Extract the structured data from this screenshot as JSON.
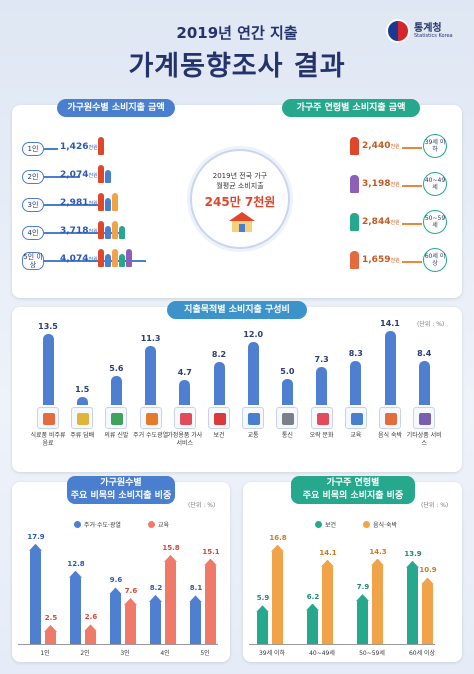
{
  "header": {
    "subtitle": "2019년 연간 지출",
    "title": "가계동향조사 결과",
    "logo_name": "통계청",
    "logo_en": "Statistics Korea"
  },
  "colors": {
    "navy": "#25336b",
    "blue": "#4f7fd1",
    "green": "#26a88d",
    "orange": "#f1a34a",
    "red": "#e0462a",
    "coral": "#ef7a6a"
  },
  "section1": {
    "left_title": "가구원수별 소비지출 금액",
    "right_title": "가구주 연령별 소비지출 금액",
    "center_line1": "2019년 전국 가구",
    "center_line2": "월평균 소비지출",
    "center_value": "245만 7천원",
    "unit_suffix": "천원",
    "household": [
      {
        "label": "1인",
        "value": "1,426"
      },
      {
        "label": "2인",
        "value": "2,074"
      },
      {
        "label": "3인",
        "value": "2,981"
      },
      {
        "label": "4인",
        "value": "3,718"
      },
      {
        "label": "5인 이상",
        "value": "4,074"
      }
    ],
    "age": [
      {
        "label": "39세 이하",
        "value": "2,440"
      },
      {
        "label": "40~49세",
        "value": "3,198"
      },
      {
        "label": "50~59세",
        "value": "2,844"
      },
      {
        "label": "60세 이상",
        "value": "1,659"
      }
    ]
  },
  "chart_data": [
    {
      "type": "bar",
      "title": "지출목적별 소비지출 구성비",
      "unit": "(단위 : %)",
      "categories": [
        "식료품 비주류음료",
        "주류 담배",
        "의류 신발",
        "주거 수도광열",
        "가정용품 가사서비스",
        "보건",
        "교통",
        "통신",
        "오락 문화",
        "교육",
        "음식 숙박",
        "기타상품 서비스"
      ],
      "values": [
        13.5,
        1.5,
        5.6,
        11.3,
        4.7,
        8.2,
        12.0,
        5.0,
        7.3,
        8.3,
        14.1,
        8.4
      ],
      "value_labels": [
        "13.5",
        "1.5",
        "5.6",
        "11.3",
        "4.7",
        "8.2",
        "12.0",
        "5.0",
        "7.3",
        "8.3",
        "14.1",
        "8.4"
      ],
      "icon_colors": [
        "#e46b3d",
        "#e0b33a",
        "#3fa35c",
        "#e57a2c",
        "#e14b5a",
        "#d93b3b",
        "#4a7fd0",
        "#7a7f8a",
        "#e14b5a",
        "#4a7fd0",
        "#e46b3d",
        "#7a5fb0"
      ]
    },
    {
      "type": "bar",
      "title": "가구원수별\n주요 비목의 소비지출 비중",
      "title_line1": "가구원수별",
      "title_line2": "주요 비목의 소비지출 비중",
      "unit": "(단위 : %)",
      "categories": [
        "1인",
        "2인",
        "3인",
        "4인",
        "5인"
      ],
      "series": [
        {
          "name": "주거·수도·광열",
          "values": [
            17.9,
            12.8,
            9.6,
            8.2,
            8.1
          ],
          "labels": [
            "17.9",
            "12.8",
            "9.6",
            "8.2",
            "8.1"
          ],
          "color": "#4f7fd1"
        },
        {
          "name": "교육",
          "values": [
            2.5,
            2.6,
            7.6,
            15.8,
            15.1
          ],
          "labels": [
            "2.5",
            "2.6",
            "7.6",
            "15.8",
            "15.1"
          ],
          "color": "#ef7a6a"
        }
      ],
      "ylim": [
        0,
        19
      ]
    },
    {
      "type": "bar",
      "title": "가구주 연령별\n주요 비목의 소비지출 비중",
      "title_line1": "가구주 연령별",
      "title_line2": "주요 비목의 소비지출 비중",
      "unit": "(단위 : %)",
      "categories": [
        "39세 이하",
        "40~49세",
        "50~59세",
        "60세 이상"
      ],
      "series": [
        {
          "name": "보건",
          "values": [
            5.9,
            6.2,
            7.9,
            13.9
          ],
          "labels": [
            "5.9",
            "6.2",
            "7.9",
            "13.9"
          ],
          "color": "#26a88d"
        },
        {
          "name": "음식·숙박",
          "values": [
            16.8,
            14.1,
            14.3,
            10.9
          ],
          "labels": [
            "16.8",
            "14.1",
            "14.3",
            "10.9"
          ],
          "color": "#f1a34a"
        }
      ],
      "ylim": [
        0,
        18
      ]
    }
  ]
}
